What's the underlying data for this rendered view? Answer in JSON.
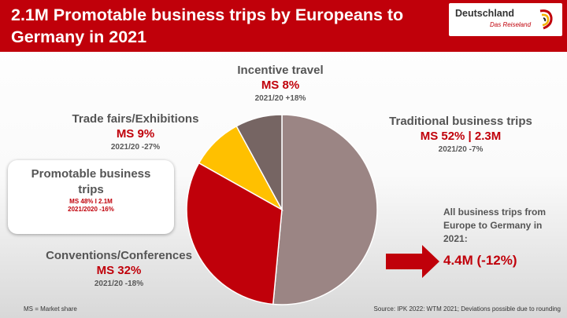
{
  "title": "2.1M Promotable business trips by Europeans to Germany in 2021",
  "logo": {
    "name": "Deutschland",
    "tagline": "Das Reiseland"
  },
  "segments": {
    "incentive": {
      "name": "Incentive travel",
      "share": "MS 8%",
      "change": "2021/20 +18%"
    },
    "trade": {
      "name": "Trade fairs/Exhibitions",
      "share": "MS 9%",
      "change": "2021/20 -27%"
    },
    "traditional": {
      "name": "Traditional business trips",
      "share": "MS 52% | 2.3M",
      "change": "2021/20 -7%"
    },
    "conventions": {
      "name": "Conventions/Conferences",
      "share": "MS 32%",
      "change": "2021/20 -18%"
    }
  },
  "promotable": {
    "title": "Promotable business trips",
    "share": "MS 48% I 2.1M",
    "change": "2021/2020 -16%"
  },
  "all_trips": {
    "text": "All business trips from Europe to Germany in 2021:",
    "value": "4.4M (-12%)"
  },
  "footnote_left": "MS = Market share",
  "footnote_right": "Source: IPK 2022: WTM 2021; Deviations possible due to rounding",
  "colors": {
    "header": "#c0000a",
    "traditional": "#9b8584",
    "conventions": "#c0000a",
    "trade": "#ffc000",
    "incentive": "#766563"
  },
  "chart_data": {
    "type": "pie",
    "title": "2.1M Promotable business trips by Europeans to Germany in 2021",
    "slices": [
      {
        "label": "Traditional business trips",
        "value": 52,
        "color": "#9b8584"
      },
      {
        "label": "Conventions/Conferences",
        "value": 32,
        "color": "#c0000a"
      },
      {
        "label": "Trade fairs/Exhibitions",
        "value": 9,
        "color": "#ffc000"
      },
      {
        "label": "Incentive travel",
        "value": 8,
        "color": "#766563"
      }
    ],
    "start_angle": "12 o'clock",
    "direction": "clockwise",
    "legend": "none"
  }
}
